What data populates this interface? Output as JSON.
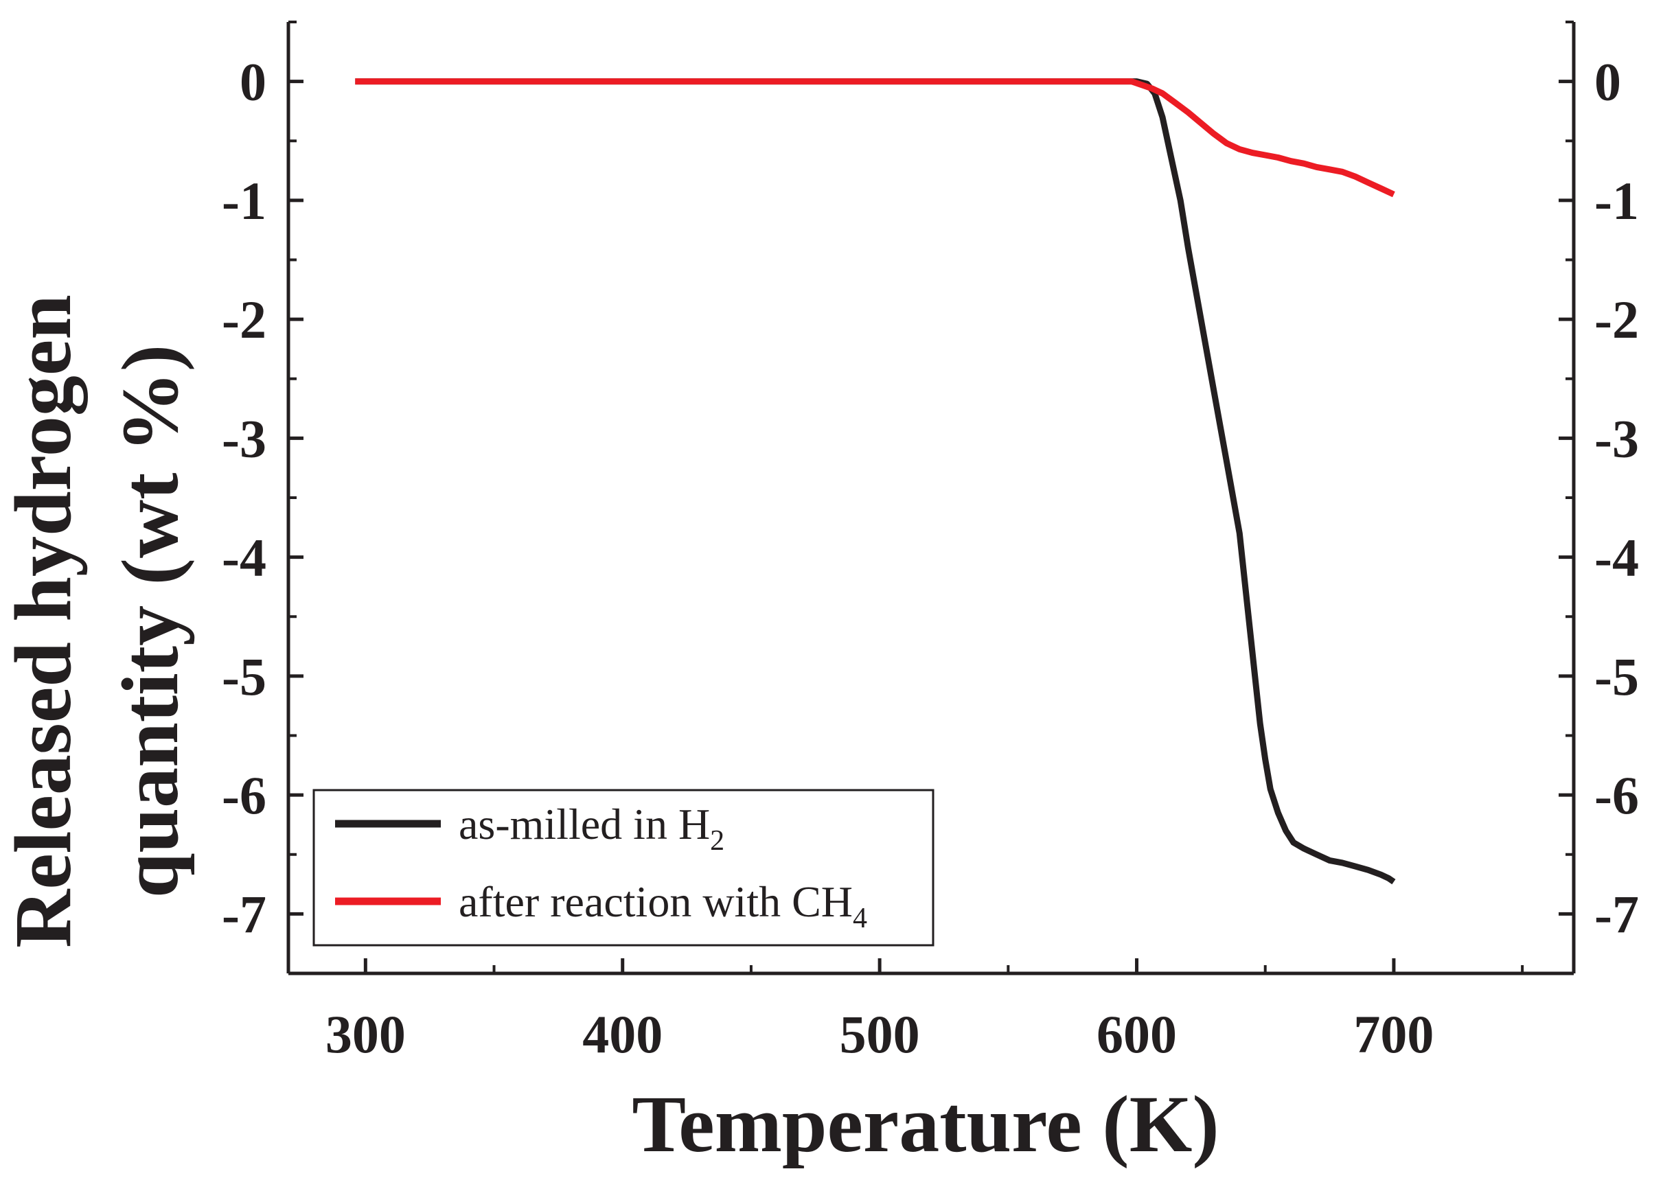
{
  "chart_data": {
    "type": "line",
    "title": "",
    "xlabel": "Temperature (K)",
    "ylabel_line1": "Released hydrogen",
    "ylabel_line2": "quantity (wt %)",
    "xlim": [
      270,
      770
    ],
    "ylim": [
      -7.5,
      0.5
    ],
    "x_ticks": [
      300,
      400,
      500,
      600,
      700
    ],
    "x_tick_labels": [
      "300",
      "400",
      "500",
      "600",
      "700"
    ],
    "x_minor_ticks": [
      350,
      450,
      550,
      650,
      750
    ],
    "y_ticks": [
      0,
      -1,
      -2,
      -3,
      -4,
      -5,
      -6,
      -7
    ],
    "y_tick_labels": [
      "0",
      "-1",
      "-2",
      "-3",
      "-4",
      "-5",
      "-6",
      "-7"
    ],
    "y_minor_ticks": [
      0.5,
      -0.5,
      -1.5,
      -2.5,
      -3.5,
      -4.5,
      -5.5,
      -6.5,
      -7.5
    ],
    "grid": false,
    "legend_position": "bottom-left",
    "series": [
      {
        "name": "as-milled in H",
        "name_sub": "2",
        "color": "#231f20",
        "x": [
          296,
          400,
          500,
          596,
          600,
          604,
          607,
          610,
          613,
          617,
          620,
          625,
          630,
          635,
          640,
          643,
          646,
          648,
          650,
          652,
          655,
          658,
          661,
          665,
          670,
          675,
          680,
          685,
          690,
          695,
          698,
          700
        ],
        "y": [
          0,
          0,
          0,
          0,
          0,
          -0.02,
          -0.1,
          -0.3,
          -0.6,
          -1.0,
          -1.4,
          -2.0,
          -2.6,
          -3.2,
          -3.8,
          -4.4,
          -5.0,
          -5.4,
          -5.7,
          -5.95,
          -6.15,
          -6.3,
          -6.4,
          -6.45,
          -6.5,
          -6.55,
          -6.57,
          -6.6,
          -6.63,
          -6.67,
          -6.7,
          -6.73
        ]
      },
      {
        "name": "after reaction with CH",
        "name_sub": "4",
        "color": "#ec1c24",
        "x": [
          296,
          400,
          500,
          598,
          602,
          606,
          610,
          615,
          620,
          625,
          630,
          635,
          640,
          645,
          650,
          655,
          660,
          665,
          670,
          675,
          680,
          685,
          690,
          695,
          700
        ],
        "y": [
          0,
          0,
          0,
          0,
          -0.03,
          -0.06,
          -0.1,
          -0.18,
          -0.26,
          -0.35,
          -0.44,
          -0.52,
          -0.57,
          -0.6,
          -0.62,
          -0.64,
          -0.67,
          -0.69,
          -0.72,
          -0.74,
          -0.76,
          -0.8,
          -0.85,
          -0.9,
          -0.95
        ]
      }
    ]
  }
}
